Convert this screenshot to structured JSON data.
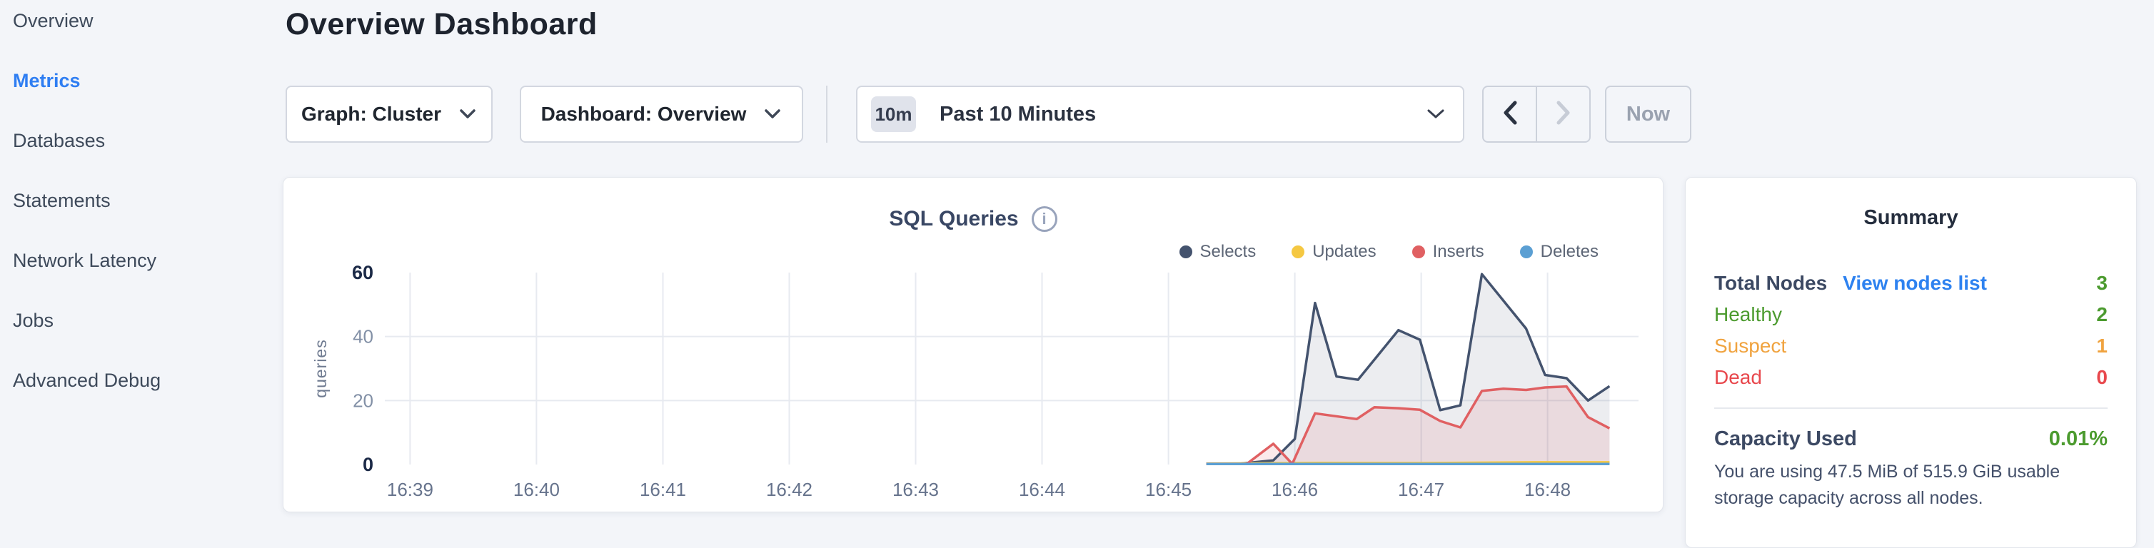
{
  "page": {
    "bg": "#f3f5f9",
    "accent": "#2f7ef2"
  },
  "sidebar": {
    "items": [
      {
        "label": "Overview",
        "active": false
      },
      {
        "label": "Metrics",
        "active": true
      },
      {
        "label": "Databases",
        "active": false
      },
      {
        "label": "Statements",
        "active": false
      },
      {
        "label": "Network Latency",
        "active": false
      },
      {
        "label": "Jobs",
        "active": false
      },
      {
        "label": "Advanced Debug",
        "active": false
      }
    ]
  },
  "header": {
    "title": "Overview Dashboard"
  },
  "toolbar": {
    "graph_button": "Graph: Cluster",
    "dashboard_button": "Dashboard: Overview",
    "time_badge": "10m",
    "time_label": "Past 10 Minutes",
    "prev_arrow_enabled": true,
    "next_arrow_enabled": false,
    "now_label": "Now",
    "arrow_enabled_color": "#2b3342",
    "arrow_disabled_color": "#c7ccd6"
  },
  "chart_data": {
    "type": "area",
    "title": "SQL Queries",
    "ylabel": "queries",
    "grid": true,
    "legend_position": "top-right",
    "x_domain_minutes": [
      38.8,
      48.55
    ],
    "x_tick_minutes": [
      39,
      40,
      41,
      42,
      43,
      44,
      45,
      46,
      47,
      48
    ],
    "x_ticks": [
      "16:39",
      "16:40",
      "16:41",
      "16:42",
      "16:43",
      "16:44",
      "16:45",
      "16:46",
      "16:47",
      "16:48"
    ],
    "y_ticks": [
      0,
      20,
      40,
      60
    ],
    "ylim": [
      0,
      60
    ],
    "series": [
      {
        "name": "Selects",
        "color": "#44536e",
        "fill_opacity": 0.1,
        "points": [
          [
            45.3,
            0.3
          ],
          [
            45.57,
            0.3
          ],
          [
            45.83,
            1.3
          ],
          [
            46.0,
            8
          ],
          [
            46.16,
            50.5
          ],
          [
            46.33,
            27.5
          ],
          [
            46.5,
            26.5
          ],
          [
            46.82,
            42
          ],
          [
            46.99,
            39
          ],
          [
            47.15,
            17
          ],
          [
            47.31,
            18.5
          ],
          [
            47.48,
            59.5
          ],
          [
            47.83,
            42.5
          ],
          [
            47.98,
            28
          ],
          [
            48.15,
            27
          ],
          [
            48.32,
            20
          ],
          [
            48.49,
            24.5
          ]
        ]
      },
      {
        "name": "Updates",
        "color": "#f5c842",
        "fill_opacity": 0.1,
        "points": [
          [
            45.3,
            0.3
          ],
          [
            46.2,
            0.5
          ],
          [
            47.0,
            0.45
          ],
          [
            47.9,
            0.7
          ],
          [
            48.49,
            0.7
          ]
        ]
      },
      {
        "name": "Inserts",
        "color": "#e06062",
        "fill_opacity": 0.13,
        "points": [
          [
            45.3,
            0.2
          ],
          [
            45.62,
            0.2
          ],
          [
            45.83,
            6.5
          ],
          [
            45.98,
            0.2
          ],
          [
            46.16,
            16
          ],
          [
            46.49,
            14.2
          ],
          [
            46.63,
            17.9
          ],
          [
            46.82,
            17.6
          ],
          [
            46.99,
            17.1
          ],
          [
            47.15,
            13.6
          ],
          [
            47.31,
            11.6
          ],
          [
            47.48,
            23
          ],
          [
            47.65,
            23.7
          ],
          [
            47.83,
            23.3
          ],
          [
            47.98,
            24.1
          ],
          [
            48.15,
            24.4
          ],
          [
            48.32,
            14.8
          ],
          [
            48.49,
            11.3
          ]
        ]
      },
      {
        "name": "Deletes",
        "color": "#5b9fd3",
        "fill_opacity": 0.0,
        "points": [
          [
            45.3,
            0.15
          ],
          [
            48.49,
            0.15
          ]
        ]
      }
    ]
  },
  "summary": {
    "title": "Summary",
    "total_nodes_label": "Total Nodes",
    "view_nodes_link": "View nodes list",
    "total_nodes_value": "3",
    "node_rows": [
      {
        "label": "Healthy",
        "value": "2",
        "tone": "green"
      },
      {
        "label": "Suspect",
        "value": "1",
        "tone": "orange"
      },
      {
        "label": "Dead",
        "value": "0",
        "tone": "red"
      }
    ],
    "capacity_label": "Capacity Used",
    "capacity_value": "0.01%",
    "capacity_description": "You are using 47.5 MiB of 515.9 GiB usable storage capacity across all nodes.",
    "tones": {
      "green": "#4c9b2f",
      "orange": "#f0a33f",
      "red": "#e8484d",
      "link": "#2e82f0"
    }
  }
}
